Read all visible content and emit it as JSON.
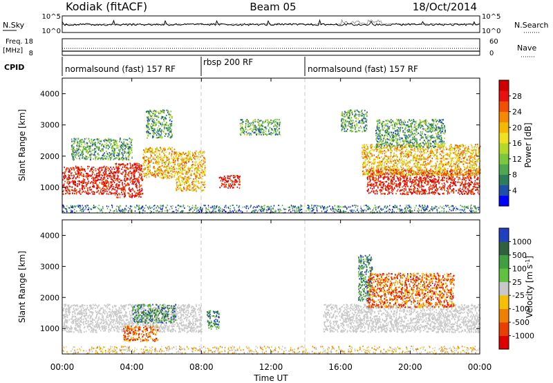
{
  "header": {
    "station": "Kodiak (fitACF)",
    "beam": "Beam 05",
    "date": "18/Oct/2014"
  },
  "noise_panel": {
    "left_label": "N.Sky",
    "left_ticks": [
      "10^5",
      "10^0"
    ],
    "right_label": "N.Search",
    "right_ticks": [
      "10^5",
      "10^0"
    ]
  },
  "freq_panel": {
    "left_label_1": "Freq.",
    "left_label_2": "[MHz]",
    "left_ticks": [
      "18",
      "8"
    ],
    "right_label": "Nave",
    "right_ticks": [
      "60",
      "0"
    ]
  },
  "cpid": {
    "label": "CPID",
    "segments": [
      {
        "name": "normalsound (fast) 157 RF",
        "start": 0,
        "end": 8
      },
      {
        "name": "rbsp 200 RF",
        "start": 8,
        "end": 14
      },
      {
        "name": "normalsound (fast) 157 RF",
        "start": 14,
        "end": 24
      }
    ]
  },
  "time_axis": {
    "label": "Time UT",
    "ticks": [
      "00:00",
      "04:00",
      "08:00",
      "12:00",
      "16:00",
      "20:00",
      "00:00"
    ]
  },
  "chart_data": [
    {
      "type": "heatmap",
      "name": "power",
      "ylabel": "Slant Range [km]",
      "yticks": [
        "4000",
        "3000",
        "2000",
        "1000"
      ],
      "ylim": [
        180,
        4500
      ],
      "xlim": [
        0,
        24
      ],
      "colorbar": {
        "label": "Power [dB]",
        "ticks": [
          "28",
          "24",
          "20",
          "16",
          "12",
          "8",
          "4"
        ],
        "range": [
          0,
          30
        ],
        "colors": [
          "#0000ff",
          "#1f4fa8",
          "#2e7d5a",
          "#4fa84f",
          "#7cc83c",
          "#b6d82a",
          "#f0e020",
          "#f5b800",
          "#f58a00",
          "#f05000",
          "#e81010",
          "#d00000"
        ]
      },
      "regions": [
        {
          "t": [
            0.0,
            3.0
          ],
          "r": [
            800,
            1700
          ],
          "level": "high"
        },
        {
          "t": [
            3.0,
            4.6
          ],
          "r": [
            700,
            1800
          ],
          "level": "high"
        },
        {
          "t": [
            4.6,
            6.5
          ],
          "r": [
            1300,
            2300
          ],
          "level": "mid"
        },
        {
          "t": [
            0.5,
            4.0
          ],
          "r": [
            1900,
            2600
          ],
          "level": "low"
        },
        {
          "t": [
            4.8,
            6.3
          ],
          "r": [
            2600,
            3500
          ],
          "level": "low"
        },
        {
          "t": [
            6.5,
            8.2
          ],
          "r": [
            900,
            2200
          ],
          "level": "mid"
        },
        {
          "t": [
            9.0,
            10.2
          ],
          "r": [
            1000,
            1400
          ],
          "level": "high"
        },
        {
          "t": [
            10.2,
            12.5
          ],
          "r": [
            2700,
            3200
          ],
          "level": "low"
        },
        {
          "t": [
            16.0,
            17.5
          ],
          "r": [
            2800,
            3500
          ],
          "level": "low"
        },
        {
          "t": [
            17.5,
            24.0
          ],
          "r": [
            800,
            1600
          ],
          "level": "high"
        },
        {
          "t": [
            17.2,
            24.0
          ],
          "r": [
            1400,
            2400
          ],
          "level": "mid"
        },
        {
          "t": [
            18.0,
            22.0
          ],
          "r": [
            2300,
            3200
          ],
          "level": "low"
        }
      ]
    },
    {
      "type": "heatmap",
      "name": "velocity",
      "ylabel": "Slant Range [km]",
      "yticks": [
        "4000",
        "3000",
        "2000",
        "1000"
      ],
      "ylim": [
        180,
        4500
      ],
      "xlim": [
        0,
        24
      ],
      "colorbar": {
        "label": "Velocity [m s^-1]",
        "ticks": [
          "1000",
          "500",
          "100",
          "25",
          "-25",
          "-100",
          "-500",
          "-1000"
        ],
        "colors": [
          "#2040c0",
          "#306040",
          "#40a040",
          "#60c040",
          "#c8c8c8",
          "#f5c000",
          "#f08000",
          "#e84000",
          "#e00000"
        ]
      },
      "regions": [
        {
          "t": [
            0.0,
            8.0
          ],
          "r": [
            900,
            1800
          ],
          "class": "ground"
        },
        {
          "t": [
            4.0,
            6.5
          ],
          "r": [
            1200,
            1800
          ],
          "class": "positive"
        },
        {
          "t": [
            3.5,
            5.5
          ],
          "r": [
            600,
            1100
          ],
          "class": "negative"
        },
        {
          "t": [
            8.3,
            9.0
          ],
          "r": [
            1000,
            1600
          ],
          "class": "positive"
        },
        {
          "t": [
            15.0,
            24.0
          ],
          "r": [
            900,
            1800
          ],
          "class": "ground"
        },
        {
          "t": [
            17.0,
            17.8
          ],
          "r": [
            1900,
            3400
          ],
          "class": "positive"
        },
        {
          "t": [
            17.5,
            22.5
          ],
          "r": [
            1700,
            2800
          ],
          "class": "negative"
        }
      ]
    }
  ]
}
